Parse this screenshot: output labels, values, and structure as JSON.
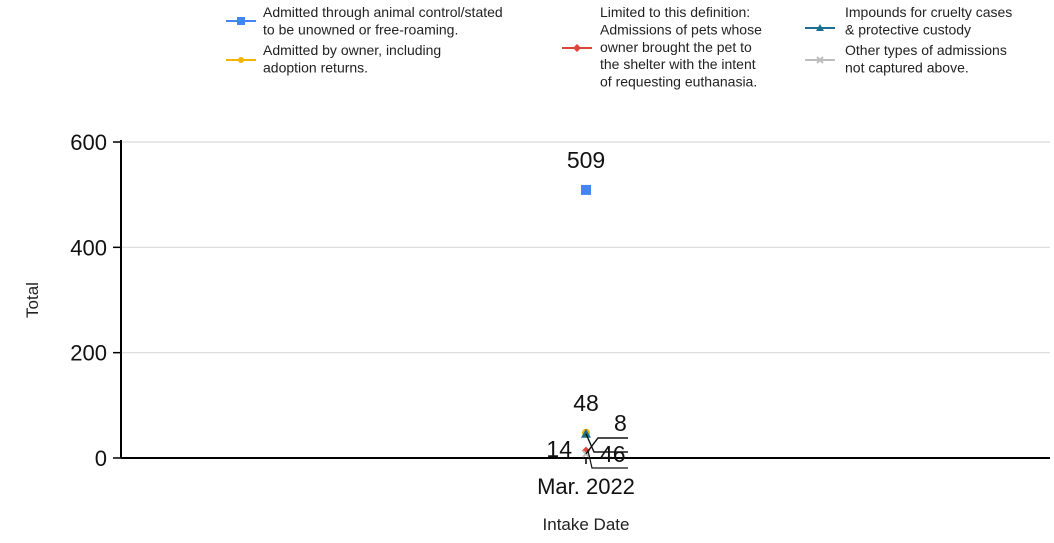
{
  "chart_data": {
    "type": "scatter",
    "title": "",
    "xlabel": "Intake Date",
    "ylabel": "Total",
    "categories": [
      "Mar. 2022"
    ],
    "ylim": [
      0,
      600
    ],
    "yticks": [
      0,
      200,
      400,
      600
    ],
    "grid": true,
    "legend_position": "top",
    "series": [
      {
        "name": "Admitted through animal control/stated to be unowned or free-roaming.",
        "legend_lines": [
          "Admitted through animal control/stated",
          "to be unowned or free-roaming."
        ],
        "values": [
          509
        ],
        "color": "#4285f4",
        "marker": "square",
        "label": "509"
      },
      {
        "name": "Admitted by owner, including adoption returns.",
        "legend_lines": [
          "Admitted by owner, including",
          "adoption returns."
        ],
        "values": [
          48
        ],
        "color": "#f4b400",
        "marker": "circle",
        "label": "48"
      },
      {
        "name": "Limited to this definition: Admissions of pets whose owner brought the pet to the shelter with the intent of requesting euthanasia.",
        "legend_lines": [
          "Limited to this definition:",
          "Admissions of pets whose",
          "owner brought the pet to",
          "the shelter with the intent",
          "of requesting euthanasia."
        ],
        "values": [
          14
        ],
        "color": "#db4437",
        "marker": "diamond",
        "label": "14"
      },
      {
        "name": "Impounds for cruelty cases & protective custody",
        "legend_lines": [
          "Impounds for cruelty cases",
          "& protective custody"
        ],
        "values": [
          46
        ],
        "color": "#1a6e8e",
        "marker": "triangle",
        "label": "46"
      },
      {
        "name": "Other types of admissions not captured above.",
        "legend_lines": [
          "Other types of admissions",
          "not captured above."
        ],
        "values": [
          8
        ],
        "color": "#bdbdbd",
        "marker": "x",
        "label": "8"
      }
    ]
  }
}
